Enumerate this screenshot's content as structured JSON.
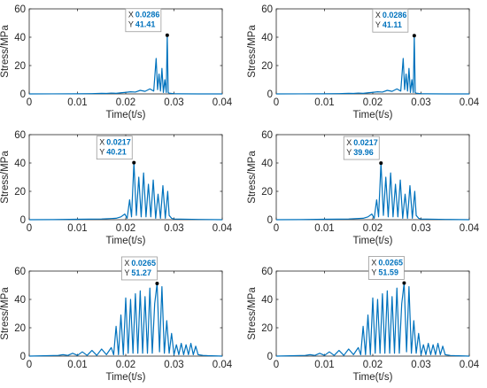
{
  "chart_data": [
    {
      "type": "line",
      "xlabel": "Time(t/s)",
      "ylabel": "Stress/MPa",
      "xlim": [
        0,
        0.04
      ],
      "ylim": [
        0,
        60
      ],
      "xticks": [
        "0",
        "0.01",
        "0.02",
        "0.03",
        "0.04"
      ],
      "yticks": [
        "0",
        "20",
        "40",
        "60"
      ],
      "line_color": "#0072BD",
      "datatip": {
        "x_label": "X",
        "x_value": "0.0286",
        "y_label": "Y",
        "y_value": "41.41",
        "x": 0.0286,
        "y": 41.41
      },
      "x": [
        0,
        0.005,
        0.01,
        0.013,
        0.015,
        0.016,
        0.017,
        0.018,
        0.019,
        0.02,
        0.021,
        0.022,
        0.023,
        0.024,
        0.025,
        0.0258,
        0.0263,
        0.0266,
        0.0269,
        0.0272,
        0.0275,
        0.0278,
        0.0281,
        0.0284,
        0.0286,
        0.0288,
        0.029,
        0.0295,
        0.03,
        0.031,
        0.035,
        0.04
      ],
      "y": [
        0,
        0.05,
        0.1,
        0.2,
        0.4,
        0.3,
        0.6,
        0.4,
        0.8,
        1.1,
        1.5,
        1.3,
        2.5,
        1.8,
        3.5,
        2,
        25,
        3,
        14,
        2,
        18,
        1,
        10,
        1,
        41.41,
        1,
        0.5,
        0.3,
        0.2,
        0.1,
        0,
        0
      ]
    },
    {
      "type": "line",
      "xlabel": "Time(t/s)",
      "ylabel": "Stress/MPa",
      "xlim": [
        0,
        0.04
      ],
      "ylim": [
        0,
        60
      ],
      "xticks": [
        "0",
        "0.01",
        "0.02",
        "0.03",
        "0.04"
      ],
      "yticks": [
        "0",
        "20",
        "40",
        "60"
      ],
      "line_color": "#0072BD",
      "datatip": {
        "x_label": "X",
        "x_value": "0.0286",
        "y_label": "Y",
        "y_value": "41.11",
        "x": 0.0286,
        "y": 41.11
      },
      "x": [
        0,
        0.005,
        0.01,
        0.013,
        0.015,
        0.016,
        0.017,
        0.018,
        0.019,
        0.02,
        0.021,
        0.022,
        0.023,
        0.024,
        0.025,
        0.0258,
        0.0263,
        0.0266,
        0.0269,
        0.0272,
        0.0275,
        0.0278,
        0.0281,
        0.0284,
        0.0286,
        0.0288,
        0.029,
        0.0295,
        0.03,
        0.031,
        0.035,
        0.04
      ],
      "y": [
        0,
        0.05,
        0.1,
        0.2,
        0.4,
        0.3,
        0.6,
        0.4,
        0.8,
        1.1,
        1.5,
        1.3,
        2.5,
        1.8,
        3.5,
        2,
        25,
        3,
        14,
        2,
        18,
        1,
        10,
        1,
        41.11,
        1,
        0.5,
        0.3,
        0.2,
        0.1,
        0,
        0
      ]
    },
    {
      "type": "line",
      "xlabel": "Time(t/s)",
      "ylabel": "Stress/MPa",
      "xlim": [
        0,
        0.04
      ],
      "ylim": [
        0,
        60
      ],
      "xticks": [
        "0",
        "0.01",
        "0.02",
        "0.03",
        "0.04"
      ],
      "yticks": [
        "0",
        "20",
        "40",
        "60"
      ],
      "line_color": "#0072BD",
      "datatip": {
        "x_label": "X",
        "x_value": "0.0217",
        "y_label": "Y",
        "y_value": "40.21",
        "x": 0.0217,
        "y": 40.21
      },
      "x": [
        0,
        0.005,
        0.01,
        0.015,
        0.018,
        0.019,
        0.0198,
        0.0203,
        0.0208,
        0.0212,
        0.0217,
        0.0222,
        0.0227,
        0.0232,
        0.0237,
        0.0242,
        0.0247,
        0.0252,
        0.0257,
        0.0262,
        0.0267,
        0.0272,
        0.0277,
        0.0282,
        0.0287,
        0.029,
        0.0295,
        0.03,
        0.035,
        0.04
      ],
      "y": [
        0,
        0.1,
        0.3,
        0.5,
        1,
        2,
        4,
        1,
        14,
        2,
        40.21,
        3,
        30,
        2,
        33,
        2,
        25,
        2,
        28,
        1,
        18,
        1,
        24,
        1,
        20,
        3,
        1,
        0.5,
        0.2,
        0
      ]
    },
    {
      "type": "line",
      "xlabel": "Time(t/s)",
      "ylabel": "Stress/MPa",
      "xlim": [
        0,
        0.04
      ],
      "ylim": [
        0,
        60
      ],
      "xticks": [
        "0",
        "0.01",
        "0.02",
        "0.03",
        "0.04"
      ],
      "yticks": [
        "0",
        "20",
        "40",
        "60"
      ],
      "line_color": "#0072BD",
      "datatip": {
        "x_label": "X",
        "x_value": "0.0217",
        "y_label": "Y",
        "y_value": "39.96",
        "x": 0.0217,
        "y": 39.96
      },
      "x": [
        0,
        0.005,
        0.01,
        0.015,
        0.018,
        0.019,
        0.0198,
        0.0203,
        0.0208,
        0.0212,
        0.0217,
        0.0222,
        0.0227,
        0.0232,
        0.0237,
        0.0242,
        0.0247,
        0.0252,
        0.0257,
        0.0262,
        0.0267,
        0.0272,
        0.0277,
        0.0282,
        0.0287,
        0.029,
        0.0295,
        0.03,
        0.035,
        0.04
      ],
      "y": [
        0,
        0.1,
        0.3,
        0.5,
        1,
        2,
        4,
        1,
        14,
        2,
        39.96,
        3,
        30,
        2,
        33,
        2,
        25,
        2,
        28,
        1,
        18,
        1,
        24,
        1,
        20,
        3,
        1,
        0.5,
        0.2,
        0
      ]
    },
    {
      "type": "line",
      "xlabel": "Time(t/s)",
      "ylabel": "Stress/MPa",
      "xlim": [
        0,
        0.04
      ],
      "ylim": [
        0,
        60
      ],
      "xticks": [
        "0",
        "0.01",
        "0.02",
        "0.03",
        "0.04"
      ],
      "yticks": [
        "0",
        "20",
        "40",
        "60"
      ],
      "line_color": "#0072BD",
      "datatip": {
        "x_label": "X",
        "x_value": "0.0265",
        "y_label": "Y",
        "y_value": "51.27",
        "x": 0.0265,
        "y": 51.27
      },
      "x": [
        0,
        0.004,
        0.006,
        0.007,
        0.008,
        0.009,
        0.01,
        0.011,
        0.012,
        0.013,
        0.014,
        0.015,
        0.016,
        0.017,
        0.0175,
        0.018,
        0.0185,
        0.019,
        0.0195,
        0.02,
        0.0205,
        0.021,
        0.0215,
        0.022,
        0.0225,
        0.023,
        0.0235,
        0.024,
        0.0245,
        0.025,
        0.0255,
        0.026,
        0.0265,
        0.027,
        0.0275,
        0.028,
        0.0285,
        0.029,
        0.0295,
        0.03,
        0.0305,
        0.031,
        0.0315,
        0.032,
        0.0325,
        0.033,
        0.0335,
        0.034,
        0.0345,
        0.035,
        0.036,
        0.037,
        0.04
      ],
      "y": [
        0,
        0.3,
        0.5,
        1,
        0.5,
        2,
        0.5,
        3,
        0.5,
        4,
        0.5,
        5,
        1,
        6,
        1,
        21,
        1,
        29,
        1,
        41,
        2,
        40,
        2,
        44,
        2,
        46,
        2,
        42,
        2,
        48,
        2,
        37,
        51.27,
        3,
        49,
        2,
        25,
        2,
        16,
        1,
        8,
        1,
        9,
        1,
        8,
        1,
        9,
        1,
        7,
        1,
        0.5,
        0.3,
        0
      ]
    },
    {
      "type": "line",
      "xlabel": "Time(t/s)",
      "ylabel": "Stress/MPa",
      "xlim": [
        0,
        0.04
      ],
      "ylim": [
        0,
        60
      ],
      "xticks": [
        "0",
        "0.01",
        "0.02",
        "0.03",
        "0.04"
      ],
      "yticks": [
        "0",
        "20",
        "40",
        "60"
      ],
      "line_color": "#0072BD",
      "datatip": {
        "x_label": "X",
        "x_value": "0.0265",
        "y_label": "Y",
        "y_value": "51.59",
        "x": 0.0265,
        "y": 51.59
      },
      "x": [
        0,
        0.004,
        0.006,
        0.007,
        0.008,
        0.009,
        0.01,
        0.011,
        0.012,
        0.013,
        0.014,
        0.015,
        0.016,
        0.017,
        0.0175,
        0.018,
        0.0185,
        0.019,
        0.0195,
        0.02,
        0.0205,
        0.021,
        0.0215,
        0.022,
        0.0225,
        0.023,
        0.0235,
        0.024,
        0.0245,
        0.025,
        0.0255,
        0.026,
        0.0265,
        0.027,
        0.0275,
        0.028,
        0.0285,
        0.029,
        0.0295,
        0.03,
        0.0305,
        0.031,
        0.0315,
        0.032,
        0.0325,
        0.033,
        0.0335,
        0.034,
        0.0345,
        0.035,
        0.036,
        0.037,
        0.04
      ],
      "y": [
        0,
        0.3,
        0.5,
        1,
        0.5,
        2,
        0.5,
        3,
        0.5,
        4,
        0.5,
        5,
        1,
        6,
        1,
        21,
        1,
        29,
        1,
        41,
        2,
        40,
        2,
        44,
        2,
        46,
        2,
        42,
        2,
        48,
        2,
        37,
        51.59,
        3,
        49,
        2,
        25,
        2,
        16,
        1,
        8,
        1,
        9,
        1,
        8,
        1,
        9,
        1,
        7,
        1,
        0.5,
        0.3,
        0
      ]
    }
  ]
}
